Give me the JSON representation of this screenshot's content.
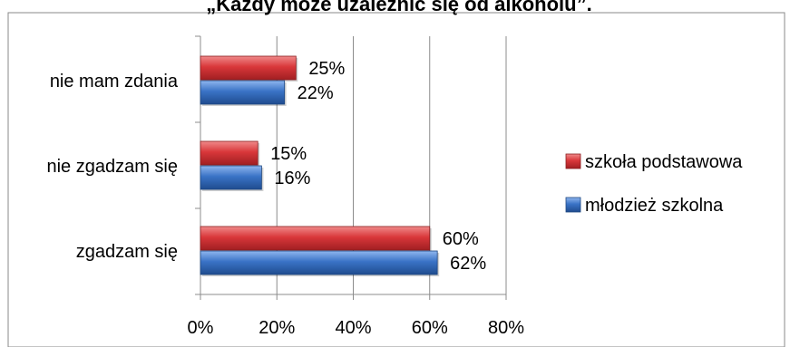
{
  "chart_data": {
    "type": "bar",
    "orientation": "horizontal",
    "title": "„Każdy może uzależnić się od alkoholu”.",
    "categories": [
      "nie mam zdania",
      "nie zgadzam się",
      "zgadzam się"
    ],
    "series": [
      {
        "name": "szkoła podstawowa",
        "color": "#d9373a",
        "values": [
          25,
          15,
          60
        ],
        "labels": [
          "25%",
          "15%",
          "60%"
        ]
      },
      {
        "name": "młodzież szkolna",
        "color": "#3a73c6",
        "values": [
          22,
          16,
          62
        ],
        "labels": [
          "22%",
          "16%",
          "62%"
        ]
      }
    ],
    "xlim": [
      0,
      80
    ],
    "xticks": [
      0,
      20,
      40,
      60,
      80
    ],
    "xtick_labels": [
      "0%",
      "20%",
      "40%",
      "60%",
      "80%"
    ],
    "grid": true,
    "legend_position": "right"
  }
}
